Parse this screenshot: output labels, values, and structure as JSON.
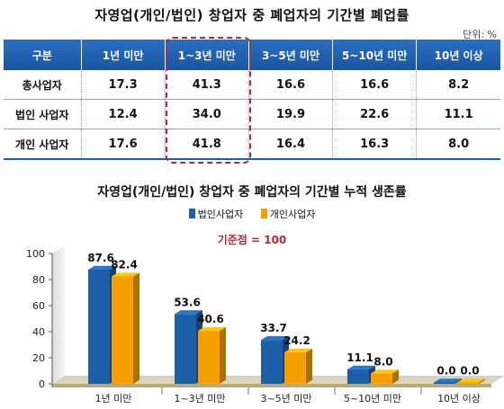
{
  "table_title": "자영업(개인/법인) 창업자 중 폐업자의 기간별 폐업률",
  "unit_label": "단위: %",
  "table": {
    "headers": [
      "구분",
      "1년 미만",
      "1~3년 미만",
      "3~5년 미만",
      "5~10년 미만",
      "10년 이상"
    ],
    "rows": [
      [
        "총사업자",
        "17.3",
        "41.3",
        "16.6",
        "16.6",
        "8.2"
      ],
      [
        "법인 사업자",
        "12.4",
        "34.0",
        "19.9",
        "22.6",
        "11.1"
      ],
      [
        "개인 사업자",
        "17.6",
        "41.8",
        "16.4",
        "16.3",
        "8.0"
      ]
    ],
    "highlight_column": "1~3년 미만",
    "highlight_color": "#c0262e"
  },
  "chart_data": {
    "type": "bar",
    "title": "자영업(개인/법인) 창업자 중 폐업자의 기간별 누적 생존률",
    "annotation": "기준점 = 100",
    "categories": [
      "1년 미만",
      "1~3년 미만",
      "3~5년 미만",
      "5~10년 미만",
      "10년 이상"
    ],
    "series": [
      {
        "name": "법인사업자",
        "values": [
          87.6,
          53.6,
          33.7,
          11.1,
          0.0
        ],
        "color": "#1f5fa8"
      },
      {
        "name": "개인사업자",
        "values": [
          82.4,
          40.6,
          24.2,
          8.0,
          0.0
        ],
        "color": "#f5a000"
      }
    ],
    "data_labels": [
      [
        "87.6",
        "53.6",
        "33.7",
        "11.1",
        "0.0"
      ],
      [
        "82.4",
        "40.6",
        "24.2",
        "8.0",
        "0.0"
      ]
    ],
    "yticks": [
      "0",
      "20",
      "40",
      "60",
      "80",
      "100"
    ],
    "ylim": [
      0,
      100
    ],
    "grid": false,
    "legend_position": "top"
  }
}
